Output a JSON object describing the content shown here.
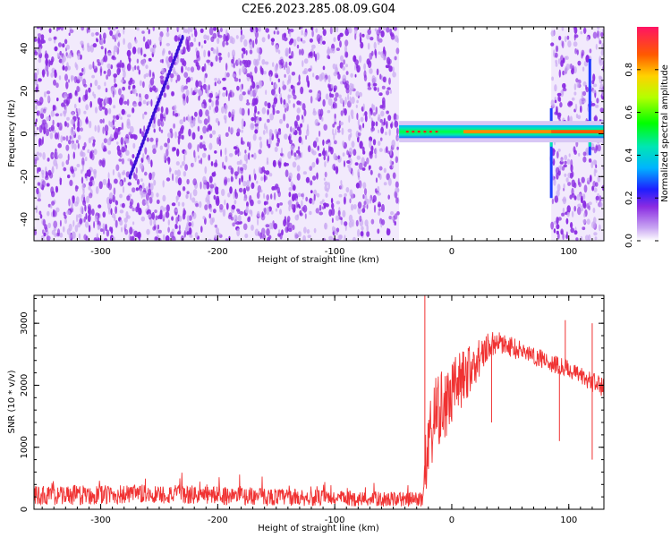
{
  "title": "C2E6.2023.285.08.09.G04",
  "colors": {
    "snr_line": "#f03232",
    "scatter": "#8a2be2",
    "scatter_light": "#c9a6f2"
  },
  "chart_data": [
    {
      "type": "heatmap",
      "xlabel": "Height of straight line (km)",
      "ylabel": "Frequency (Hz)",
      "xlim": [
        -357,
        130
      ],
      "ylim": [
        -50,
        50
      ],
      "x_ticks": [
        -300,
        -200,
        -100,
        0,
        100
      ],
      "x_tick_labels": [
        "-300",
        "-200",
        "-100",
        "0",
        "100"
      ],
      "y_ticks": [
        -40,
        -20,
        0,
        20,
        40
      ],
      "y_tick_labels": [
        "-40",
        "-20",
        "0",
        "20",
        "40"
      ],
      "colorbar": {
        "label": "Normalized spectral amplitude",
        "range": [
          0,
          1
        ],
        "ticks": [
          0,
          0.2,
          0.4,
          0.6,
          0.8
        ],
        "tick_labels": [
          "0.0",
          "0.2",
          "0.4",
          "0.6",
          "0.8"
        ]
      },
      "regions": [
        {
          "x_range": [
            -357,
            -45
          ],
          "kind": "noise",
          "freq_range": [
            -50,
            50
          ]
        },
        {
          "x_range": [
            -45,
            85
          ],
          "kind": "carrier",
          "freq_range": [
            -4,
            4
          ]
        },
        {
          "x_range": [
            85,
            130
          ],
          "kind": "noise",
          "freq_range": [
            -50,
            50
          ]
        }
      ],
      "carrier_frequency": 1,
      "features": [
        {
          "type": "streak",
          "x": [
            -275,
            -230
          ],
          "y": [
            -20,
            45
          ]
        },
        {
          "type": "spike",
          "x": 85,
          "y": [
            -30,
            12
          ]
        },
        {
          "type": "spike",
          "x": 118,
          "y": [
            -10,
            35
          ]
        }
      ],
      "grid": false
    },
    {
      "type": "line",
      "xlabel": "Height of straight line (km)",
      "ylabel": "SNR (10 * v/v)",
      "xlim": [
        -357,
        130
      ],
      "ylim": [
        0,
        3450
      ],
      "x_ticks": [
        -300,
        -200,
        -100,
        0,
        100
      ],
      "x_tick_labels": [
        "-300",
        "-200",
        "-100",
        "0",
        "100"
      ],
      "y_ticks": [
        0,
        1000,
        2000,
        3000
      ],
      "y_tick_labels": [
        "0",
        "1000",
        "2000",
        "3000"
      ],
      "envelope": {
        "x": [
          -357,
          -300,
          -250,
          -200,
          -150,
          -100,
          -50,
          -25,
          -22,
          -15,
          -10,
          0,
          10,
          20,
          30,
          40,
          50,
          60,
          70,
          80,
          90,
          100,
          110,
          120,
          130
        ],
        "baseline": [
          220,
          230,
          240,
          225,
          200,
          175,
          160,
          160,
          800,
          1450,
          1550,
          1850,
          2150,
          2350,
          2620,
          2700,
          2620,
          2550,
          2480,
          2400,
          2330,
          2250,
          2150,
          2050,
          1960
        ],
        "noise": [
          160,
          160,
          160,
          150,
          140,
          130,
          120,
          120,
          600,
          650,
          650,
          550,
          450,
          350,
          220,
          180,
          170,
          170,
          160,
          160,
          150,
          150,
          150,
          160,
          150
        ]
      },
      "dips": [
        {
          "x": 34,
          "value": 1400
        },
        {
          "x": 92,
          "value": 1100
        },
        {
          "x": 120,
          "value": 800
        }
      ],
      "peaks": [
        {
          "x": -23,
          "value": 3450
        },
        {
          "x": 97,
          "value": 3050
        },
        {
          "x": 120,
          "value": 3000
        }
      ],
      "grid": false
    }
  ]
}
